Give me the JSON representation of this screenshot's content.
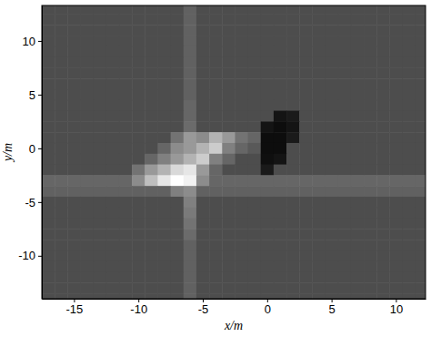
{
  "chart_data": {
    "type": "heatmap",
    "x_label": "x/m",
    "y_label": "y/m",
    "xlim": [
      -17.5,
      12.3
    ],
    "ylim": [
      -14,
      13.3
    ],
    "xticks": [
      -15,
      -10,
      -5,
      0,
      5,
      10
    ],
    "yticks": [
      -10,
      -5,
      0,
      5,
      10
    ],
    "zlim": [
      0,
      100
    ],
    "x": [
      -17,
      -16,
      -15,
      -14,
      -13,
      -12,
      -11,
      -10,
      -9,
      -8,
      -7,
      -6,
      -5,
      -4,
      -3,
      -2,
      -1,
      0,
      1,
      2,
      3,
      4,
      5,
      6,
      7,
      8,
      9,
      10,
      11,
      12
    ],
    "y": [
      13,
      12,
      11,
      10,
      9,
      8,
      7,
      6,
      5,
      4,
      3,
      2,
      1,
      0,
      -1,
      -2,
      -3,
      -4,
      -5,
      -6,
      -7,
      -8,
      -9,
      -10,
      -11,
      -12,
      -13,
      -14
    ],
    "z": [
      [
        30,
        30,
        30,
        30,
        30,
        30,
        30,
        30,
        30,
        30,
        30,
        38,
        30,
        30,
        30,
        30,
        30,
        30,
        30,
        30,
        30,
        30,
        30,
        30,
        30,
        30,
        30,
        30,
        30,
        30
      ],
      [
        30,
        30,
        30,
        30,
        30,
        30,
        30,
        30,
        30,
        30,
        30,
        38,
        30,
        30,
        30,
        30,
        30,
        30,
        30,
        30,
        30,
        30,
        30,
        30,
        30,
        30,
        30,
        30,
        30,
        30
      ],
      [
        30,
        30,
        30,
        30,
        30,
        30,
        30,
        30,
        30,
        30,
        30,
        38,
        30,
        30,
        30,
        30,
        30,
        30,
        30,
        30,
        30,
        30,
        30,
        30,
        30,
        30,
        30,
        30,
        30,
        30
      ],
      [
        30,
        30,
        30,
        30,
        30,
        30,
        30,
        30,
        30,
        30,
        30,
        38,
        30,
        30,
        30,
        30,
        30,
        30,
        30,
        30,
        30,
        30,
        30,
        30,
        30,
        30,
        30,
        30,
        30,
        30
      ],
      [
        30,
        30,
        30,
        30,
        30,
        30,
        30,
        30,
        30,
        30,
        30,
        38,
        30,
        30,
        30,
        30,
        30,
        30,
        30,
        30,
        30,
        30,
        30,
        30,
        30,
        30,
        30,
        30,
        30,
        30
      ],
      [
        30,
        30,
        30,
        30,
        30,
        30,
        30,
        30,
        30,
        30,
        30,
        38,
        30,
        30,
        30,
        30,
        30,
        30,
        30,
        30,
        30,
        30,
        30,
        30,
        30,
        30,
        30,
        30,
        30,
        30
      ],
      [
        30,
        30,
        30,
        30,
        30,
        30,
        30,
        30,
        30,
        30,
        30,
        38,
        30,
        30,
        30,
        30,
        30,
        30,
        30,
        30,
        30,
        30,
        30,
        30,
        30,
        30,
        30,
        30,
        30,
        30
      ],
      [
        30,
        30,
        30,
        30,
        30,
        30,
        30,
        30,
        30,
        30,
        30,
        38,
        30,
        30,
        30,
        30,
        30,
        30,
        30,
        30,
        30,
        30,
        30,
        30,
        30,
        30,
        30,
        30,
        30,
        30
      ],
      [
        30,
        30,
        30,
        30,
        30,
        30,
        30,
        30,
        30,
        30,
        30,
        38,
        30,
        30,
        30,
        30,
        30,
        30,
        30,
        30,
        30,
        30,
        30,
        30,
        30,
        30,
        30,
        30,
        30,
        30
      ],
      [
        30,
        30,
        30,
        30,
        30,
        30,
        30,
        30,
        30,
        30,
        30,
        40,
        30,
        30,
        30,
        30,
        30,
        30,
        30,
        30,
        30,
        30,
        30,
        30,
        30,
        30,
        30,
        30,
        30,
        30
      ],
      [
        30,
        30,
        30,
        30,
        30,
        30,
        30,
        30,
        30,
        30,
        30,
        40,
        30,
        30,
        30,
        30,
        30,
        30,
        8,
        10,
        30,
        30,
        30,
        30,
        30,
        30,
        30,
        30,
        30,
        30
      ],
      [
        30,
        30,
        30,
        30,
        30,
        30,
        30,
        30,
        30,
        30,
        30,
        42,
        30,
        30,
        30,
        30,
        30,
        8,
        5,
        8,
        30,
        30,
        30,
        30,
        30,
        30,
        30,
        30,
        30,
        30
      ],
      [
        30,
        30,
        30,
        30,
        30,
        30,
        30,
        30,
        30,
        30,
        45,
        60,
        55,
        70,
        60,
        45,
        40,
        5,
        5,
        10,
        30,
        30,
        30,
        30,
        30,
        30,
        30,
        30,
        30,
        30
      ],
      [
        30,
        30,
        30,
        30,
        30,
        30,
        30,
        30,
        30,
        40,
        55,
        60,
        70,
        80,
        50,
        40,
        35,
        5,
        5,
        30,
        30,
        30,
        30,
        30,
        30,
        30,
        30,
        30,
        30,
        30
      ],
      [
        30,
        30,
        30,
        30,
        30,
        30,
        30,
        30,
        40,
        50,
        60,
        70,
        80,
        50,
        40,
        30,
        30,
        6,
        8,
        30,
        30,
        30,
        30,
        30,
        30,
        30,
        30,
        30,
        30,
        30
      ],
      [
        30,
        30,
        30,
        30,
        30,
        30,
        30,
        45,
        60,
        70,
        85,
        90,
        60,
        40,
        30,
        30,
        30,
        10,
        30,
        30,
        30,
        30,
        30,
        30,
        30,
        30,
        30,
        30,
        30,
        30
      ],
      [
        40,
        40,
        40,
        40,
        40,
        40,
        40,
        55,
        75,
        90,
        100,
        95,
        55,
        40,
        40,
        40,
        40,
        40,
        40,
        40,
        40,
        40,
        40,
        40,
        40,
        40,
        40,
        40,
        40,
        40
      ],
      [
        38,
        38,
        38,
        38,
        38,
        38,
        38,
        38,
        38,
        38,
        50,
        55,
        38,
        38,
        38,
        38,
        38,
        38,
        38,
        38,
        38,
        38,
        38,
        38,
        38,
        38,
        38,
        38,
        38,
        38
      ],
      [
        30,
        30,
        30,
        30,
        30,
        30,
        30,
        30,
        30,
        30,
        30,
        50,
        30,
        30,
        30,
        30,
        30,
        30,
        30,
        30,
        30,
        30,
        30,
        30,
        30,
        30,
        30,
        30,
        30,
        30
      ],
      [
        30,
        30,
        30,
        30,
        30,
        30,
        30,
        30,
        30,
        30,
        30,
        48,
        30,
        30,
        30,
        30,
        30,
        30,
        30,
        30,
        30,
        30,
        30,
        30,
        30,
        30,
        30,
        30,
        30,
        30
      ],
      [
        30,
        30,
        30,
        30,
        30,
        30,
        30,
        30,
        30,
        30,
        30,
        45,
        30,
        30,
        30,
        30,
        30,
        30,
        30,
        30,
        30,
        30,
        30,
        30,
        30,
        30,
        30,
        30,
        30,
        30
      ],
      [
        30,
        30,
        30,
        30,
        30,
        30,
        30,
        30,
        30,
        30,
        30,
        42,
        30,
        30,
        30,
        30,
        30,
        30,
        30,
        30,
        30,
        30,
        30,
        30,
        30,
        30,
        30,
        30,
        30,
        30
      ],
      [
        30,
        30,
        30,
        30,
        30,
        30,
        30,
        30,
        30,
        30,
        30,
        38,
        30,
        30,
        30,
        30,
        30,
        30,
        30,
        30,
        30,
        30,
        30,
        30,
        30,
        30,
        30,
        30,
        30,
        30
      ],
      [
        30,
        30,
        30,
        30,
        30,
        30,
        30,
        30,
        30,
        30,
        30,
        38,
        30,
        30,
        30,
        30,
        30,
        30,
        30,
        30,
        30,
        30,
        30,
        30,
        30,
        30,
        30,
        30,
        30,
        30
      ],
      [
        30,
        30,
        30,
        30,
        30,
        30,
        30,
        30,
        30,
        30,
        30,
        38,
        30,
        30,
        30,
        30,
        30,
        30,
        30,
        30,
        30,
        30,
        30,
        30,
        30,
        30,
        30,
        30,
        30,
        30
      ],
      [
        30,
        30,
        30,
        30,
        30,
        30,
        30,
        30,
        30,
        30,
        30,
        38,
        30,
        30,
        30,
        30,
        30,
        30,
        30,
        30,
        30,
        30,
        30,
        30,
        30,
        30,
        30,
        30,
        30,
        30
      ],
      [
        30,
        30,
        30,
        30,
        30,
        30,
        30,
        30,
        30,
        30,
        30,
        38,
        30,
        30,
        30,
        30,
        30,
        30,
        30,
        30,
        30,
        30,
        30,
        30,
        30,
        30,
        30,
        30,
        30,
        30
      ],
      [
        30,
        30,
        30,
        30,
        30,
        30,
        30,
        30,
        30,
        30,
        30,
        38,
        30,
        30,
        30,
        30,
        30,
        30,
        30,
        30,
        30,
        30,
        30,
        30,
        30,
        30,
        30,
        30,
        30,
        30
      ]
    ]
  }
}
